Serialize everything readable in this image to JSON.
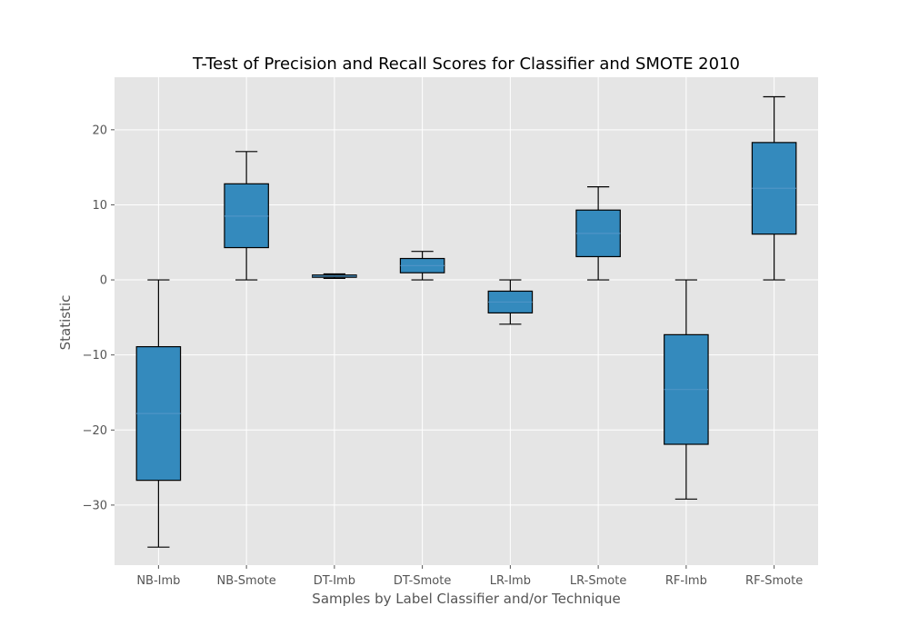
{
  "chart_data": {
    "type": "box",
    "title": "T-Test of Precision and Recall Scores for Classifier and SMOTE 2010",
    "xlabel": "Samples by Label Classifier and/or Technique",
    "ylabel": "Statistic",
    "ylim": [
      -38,
      27
    ],
    "yticks": [
      -30,
      -20,
      -10,
      0,
      10,
      20
    ],
    "ytick_labels": [
      "−30",
      "−20",
      "−10",
      "0",
      "10",
      "20"
    ],
    "grid": true,
    "background": "#e5e5e5",
    "box_color": "#348abd",
    "median_color": "#4e94c6",
    "categories": [
      "NB-Imb",
      "NB-Smote",
      "DT-Imb",
      "DT-Smote",
      "LR-Imb",
      "LR-Smote",
      "RF-Imb",
      "RF-Smote"
    ],
    "boxes": [
      {
        "whislo": -35.6,
        "q1": -26.7,
        "med": -17.8,
        "q3": -8.9,
        "whishi": 0.0
      },
      {
        "whislo": 0.0,
        "q1": 4.3,
        "med": 8.5,
        "q3": 12.8,
        "whishi": 17.1
      },
      {
        "whislo": 0.2,
        "q1": 0.35,
        "med": 0.5,
        "q3": 0.65,
        "whishi": 0.8
      },
      {
        "whislo": 0.0,
        "q1": 0.95,
        "med": 1.9,
        "q3": 2.85,
        "whishi": 3.8
      },
      {
        "whislo": -5.9,
        "q1": -4.4,
        "med": -2.95,
        "q3": -1.5,
        "whishi": 0.0
      },
      {
        "whislo": 0.0,
        "q1": 3.1,
        "med": 6.2,
        "q3": 9.3,
        "whishi": 12.4
      },
      {
        "whislo": -29.2,
        "q1": -21.9,
        "med": -14.6,
        "q3": -7.3,
        "whishi": 0.0
      },
      {
        "whislo": 0.0,
        "q1": 6.1,
        "med": 12.2,
        "q3": 18.3,
        "whishi": 24.4
      }
    ]
  }
}
